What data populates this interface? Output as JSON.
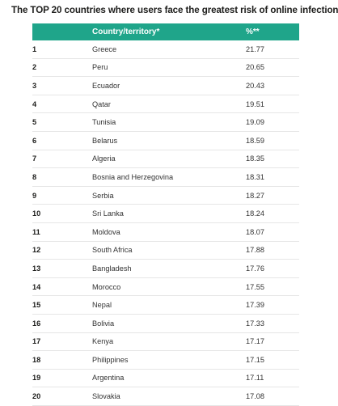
{
  "title": "The TOP 20 countries where users face the greatest risk of online infection",
  "colors": {
    "header_background": "#1fa58a",
    "header_text": "#ffffff",
    "row_divider": "#e6e6e6"
  },
  "table": {
    "headers": {
      "rank": "",
      "country": "Country/territory*",
      "percent": "%**"
    },
    "rows": [
      {
        "rank": "1",
        "country": "Greece",
        "percent": "21.77"
      },
      {
        "rank": "2",
        "country": "Peru",
        "percent": "20.65"
      },
      {
        "rank": "3",
        "country": "Ecuador",
        "percent": "20.43"
      },
      {
        "rank": "4",
        "country": "Qatar",
        "percent": "19.51"
      },
      {
        "rank": "5",
        "country": "Tunisia",
        "percent": "19.09"
      },
      {
        "rank": "6",
        "country": "Belarus",
        "percent": "18.59"
      },
      {
        "rank": "7",
        "country": "Algeria",
        "percent": "18.35"
      },
      {
        "rank": "8",
        "country": "Bosnia and Herzegovina",
        "percent": "18.31"
      },
      {
        "rank": "9",
        "country": "Serbia",
        "percent": "18.27"
      },
      {
        "rank": "10",
        "country": "Sri Lanka",
        "percent": "18.24"
      },
      {
        "rank": "11",
        "country": "Moldova",
        "percent": "18.07"
      },
      {
        "rank": "12",
        "country": "South Africa",
        "percent": "17.88"
      },
      {
        "rank": "13",
        "country": "Bangladesh",
        "percent": "17.76"
      },
      {
        "rank": "14",
        "country": "Morocco",
        "percent": "17.55"
      },
      {
        "rank": "15",
        "country": "Nepal",
        "percent": "17.39"
      },
      {
        "rank": "16",
        "country": "Bolivia",
        "percent": "17.33"
      },
      {
        "rank": "17",
        "country": "Kenya",
        "percent": "17.17"
      },
      {
        "rank": "18",
        "country": "Philippines",
        "percent": "17.15"
      },
      {
        "rank": "19",
        "country": "Argentina",
        "percent": "17.11"
      },
      {
        "rank": "20",
        "country": "Slovakia",
        "percent": "17.08"
      }
    ]
  }
}
